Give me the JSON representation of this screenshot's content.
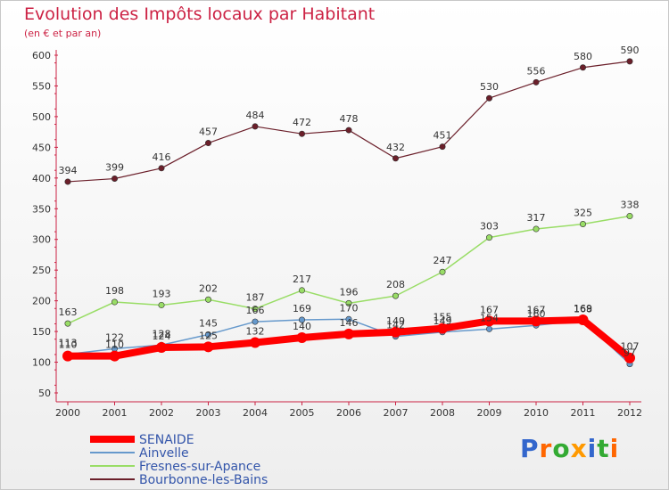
{
  "header": {
    "title": "Evolution des Impôts locaux par Habitant",
    "subtitle": "(en € et par an)"
  },
  "brand": {
    "text": "Proxiti"
  },
  "chart_data": {
    "type": "line",
    "title": "Evolution des Impôts locaux par Habitant",
    "subtitle": "(en € et par an)",
    "x": [
      "2000",
      "2001",
      "2002",
      "2003",
      "2004",
      "2005",
      "2006",
      "2007",
      "2008",
      "2009",
      "2010",
      "2011",
      "2012"
    ],
    "ylim": [
      50,
      600
    ],
    "yticks": [
      50,
      100,
      150,
      200,
      250,
      300,
      350,
      400,
      450,
      500,
      550,
      600
    ],
    "grid": false,
    "legend": "bottom-left",
    "series": [
      {
        "name": "Bourbonne-les-Bains",
        "color": "#6b1f2a",
        "values": [
          394,
          399,
          416,
          457,
          484,
          472,
          478,
          432,
          451,
          530,
          556,
          580,
          590
        ]
      },
      {
        "name": "Fresnes-sur-Apance",
        "color": "#99dd66",
        "values": [
          163,
          198,
          193,
          202,
          187,
          217,
          196,
          208,
          247,
          303,
          317,
          325,
          338
        ]
      },
      {
        "name": "Ainvelle",
        "color": "#6699cc",
        "values": [
          113,
          122,
          128,
          145,
          166,
          169,
          170,
          142,
          149,
          154,
          160,
          168,
          97
        ]
      },
      {
        "name": "SENAIDE",
        "color": "#ff0000",
        "values": [
          110,
          110,
          124,
          125,
          132,
          140,
          146,
          149,
          155,
          167,
          167,
          169,
          107
        ]
      }
    ]
  }
}
